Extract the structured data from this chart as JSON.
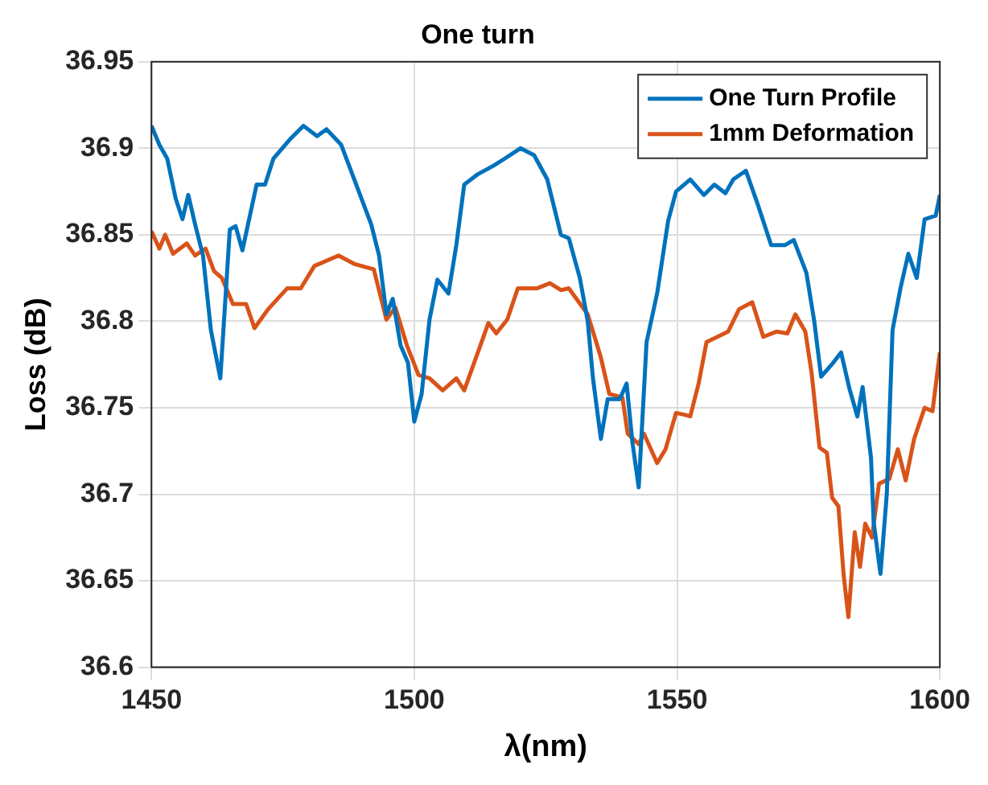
{
  "chart_data": {
    "type": "line",
    "title": "One turn",
    "xlabel": "λ(nm)",
    "ylabel": "Loss (dB)",
    "xlim": [
      1450,
      1600
    ],
    "xticks": [
      1450,
      1500,
      1550,
      1600
    ],
    "ylim": [
      36.6,
      36.95
    ],
    "yticks": [
      36.6,
      36.65,
      36.7,
      36.75,
      36.8,
      36.85,
      36.9,
      36.95
    ],
    "grid": true,
    "legend": "top right",
    "marker": "none",
    "line_style": "solid",
    "series": [
      {
        "name": "One Turn Profile",
        "color": "#0072bd",
        "x": [
          1450,
          1451.5,
          1453,
          1454.6,
          1455.9,
          1457,
          1458.3,
          1459.8,
          1461.3,
          1463.1,
          1464.9,
          1466,
          1467.3,
          1470,
          1471.6,
          1473.2,
          1476.3,
          1478.9,
          1481.5,
          1483.3,
          1486.1,
          1488.7,
          1491.8,
          1493.3,
          1494.7,
          1495.9,
          1497.4,
          1498.8,
          1500,
          1501.4,
          1502.9,
          1504.4,
          1506.5,
          1508,
          1509.5,
          1512.1,
          1515.1,
          1517.2,
          1520.2,
          1522.8,
          1525.3,
          1527.9,
          1529.4,
          1531.5,
          1533,
          1534,
          1535.5,
          1536.8,
          1539.1,
          1540.4,
          1541.5,
          1542.7,
          1544.2,
          1546.2,
          1548.3,
          1549.8,
          1552.5,
          1555.1,
          1557.1,
          1559.2,
          1560.7,
          1563.1,
          1565.3,
          1567.9,
          1570.5,
          1572.2,
          1574.6,
          1576.1,
          1577.4,
          1579.7,
          1581.2,
          1582.8,
          1584.3,
          1585.3,
          1586.9,
          1587.4,
          1588.7,
          1589.9,
          1591,
          1592.5,
          1594,
          1595.6,
          1597.1,
          1599.2,
          1600
        ],
        "values": [
          36.913,
          36.902,
          36.894,
          36.871,
          36.859,
          36.873,
          36.856,
          36.838,
          36.795,
          36.767,
          36.853,
          36.855,
          36.841,
          36.879,
          36.879,
          36.894,
          36.905,
          36.913,
          36.907,
          36.911,
          36.902,
          36.881,
          36.856,
          36.838,
          36.804,
          36.813,
          36.786,
          36.776,
          36.742,
          36.758,
          36.801,
          36.824,
          36.816,
          36.844,
          36.879,
          36.885,
          36.89,
          36.894,
          36.9,
          36.896,
          36.882,
          36.85,
          36.848,
          36.825,
          36.8,
          36.767,
          36.732,
          36.755,
          36.755,
          36.764,
          36.73,
          36.704,
          36.788,
          36.816,
          36.858,
          36.875,
          36.882,
          36.873,
          36.879,
          36.874,
          36.882,
          36.887,
          36.868,
          36.844,
          36.844,
          36.847,
          36.828,
          36.8,
          36.768,
          36.776,
          36.782,
          36.761,
          36.745,
          36.762,
          36.721,
          36.684,
          36.654,
          36.7,
          36.795,
          36.819,
          36.839,
          36.825,
          36.859,
          36.861,
          36.873
        ]
      },
      {
        "name": "1mm Deformation",
        "color": "#d95319",
        "x": [
          1450,
          1451.5,
          1452.6,
          1454.1,
          1456.7,
          1458.3,
          1460.3,
          1461.9,
          1463.4,
          1465.5,
          1468,
          1469.6,
          1472.2,
          1475.8,
          1478.4,
          1481,
          1485.6,
          1488.7,
          1492.3,
          1494.7,
          1496.4,
          1498.6,
          1500.8,
          1502.9,
          1505.4,
          1508,
          1509.5,
          1512.1,
          1514.1,
          1515.6,
          1517.7,
          1519.7,
          1523.3,
          1525.8,
          1527.9,
          1529.4,
          1533,
          1535.5,
          1537.1,
          1539.6,
          1540.6,
          1542.7,
          1543.7,
          1546.2,
          1547.8,
          1549.8,
          1551.4,
          1552.5,
          1554.1,
          1555.6,
          1557.7,
          1559.7,
          1561.8,
          1564.3,
          1566.4,
          1568.9,
          1571,
          1572.5,
          1574.4,
          1575.6,
          1577.1,
          1578.5,
          1579.5,
          1580.7,
          1581.7,
          1582.6,
          1583.8,
          1584.8,
          1585.8,
          1587.1,
          1588.4,
          1590.4,
          1592,
          1593.5,
          1595.1,
          1597.1,
          1598.6,
          1600
        ],
        "values": [
          36.852,
          36.842,
          36.85,
          36.839,
          36.845,
          36.838,
          36.842,
          36.829,
          36.825,
          36.81,
          36.81,
          36.796,
          36.807,
          36.819,
          36.819,
          36.832,
          36.838,
          36.833,
          36.83,
          36.801,
          36.808,
          36.786,
          36.769,
          36.767,
          36.76,
          36.767,
          36.76,
          36.782,
          36.799,
          36.793,
          36.801,
          36.819,
          36.819,
          36.822,
          36.818,
          36.819,
          36.804,
          36.779,
          36.758,
          36.756,
          36.735,
          36.729,
          36.735,
          36.718,
          36.726,
          36.747,
          36.746,
          36.745,
          36.764,
          36.788,
          36.791,
          36.794,
          36.807,
          36.811,
          36.791,
          36.794,
          36.793,
          36.804,
          36.794,
          36.77,
          36.727,
          36.724,
          36.698,
          36.693,
          36.653,
          36.629,
          36.678,
          36.658,
          36.683,
          36.675,
          36.706,
          36.709,
          36.726,
          36.708,
          36.732,
          36.75,
          36.748,
          36.782
        ]
      }
    ]
  }
}
